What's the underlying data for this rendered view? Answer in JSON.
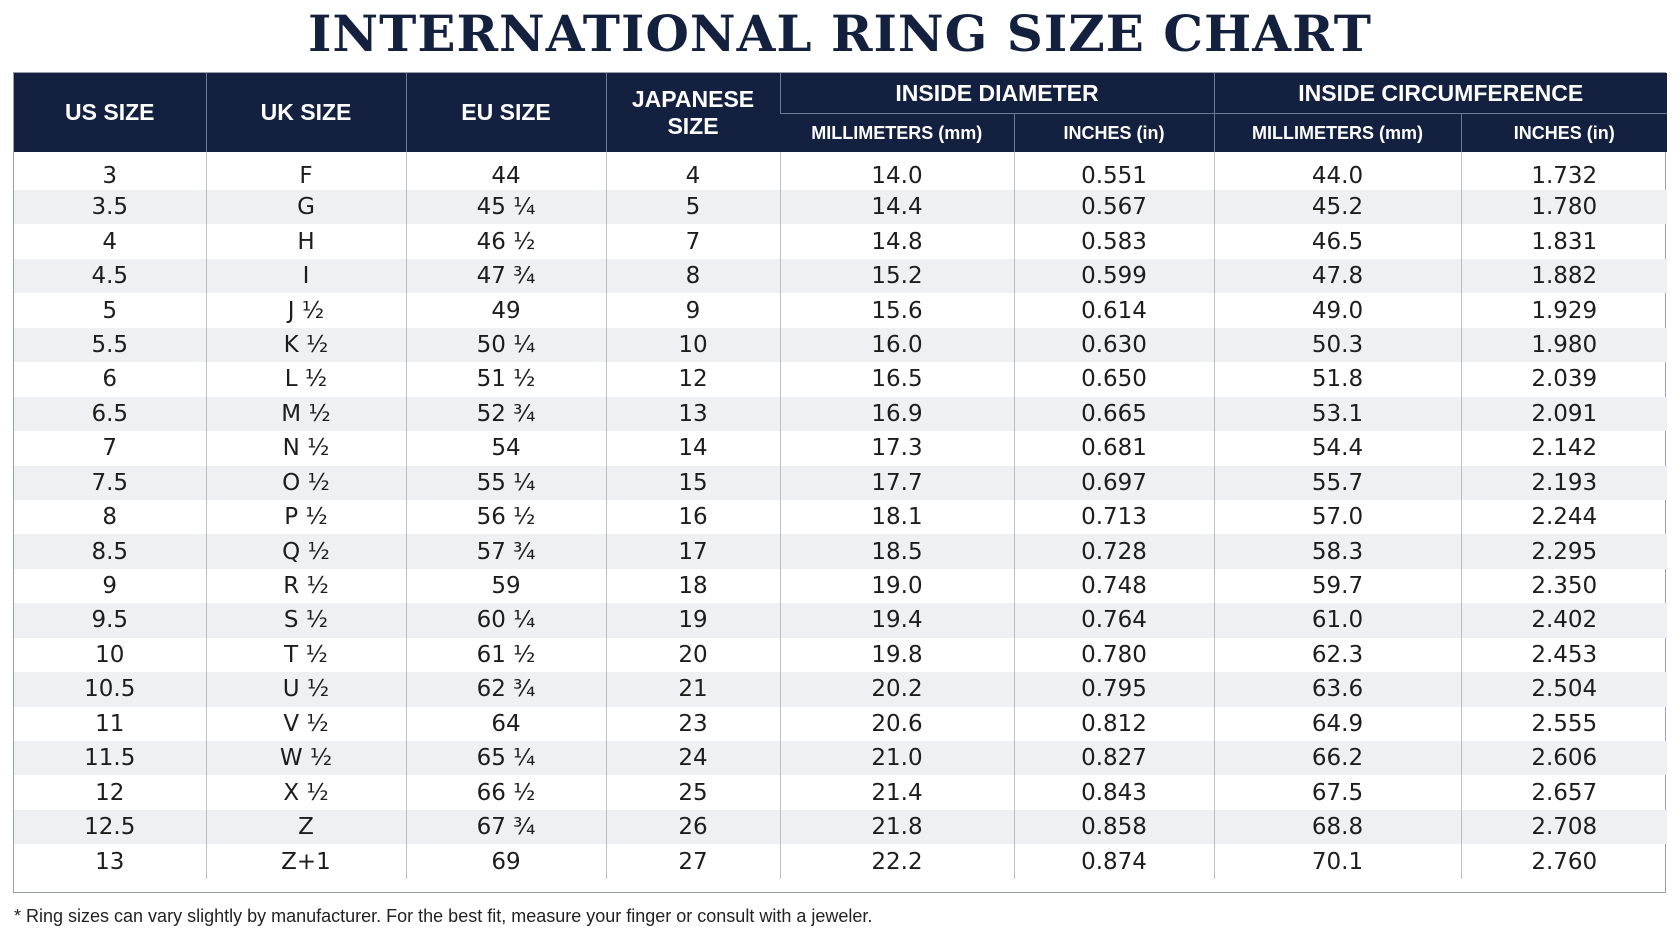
{
  "title": "INTERNATIONAL RING SIZE CHART",
  "headers": {
    "us_size": "US SIZE",
    "uk_size": "UK SIZE",
    "eu_size": "EU SIZE",
    "japanese_size_line1": "JAPANESE",
    "japanese_size_line2": "SIZE",
    "inside_diameter": "INSIDE DIAMETER",
    "inside_circumference": "INSIDE CIRCUMFERENCE",
    "diameter_mm": "MILLIMETERS (mm)",
    "diameter_in": "INCHES (in)",
    "circumference_mm": "MILLIMETERS (mm)",
    "circumference_in": "INCHES (in)"
  },
  "rows": [
    [
      "3",
      "F",
      "44",
      "4",
      "14.0",
      "0.551",
      "44.0",
      "1.732"
    ],
    [
      "3.5",
      "G",
      "45 ¼",
      "5",
      "14.4",
      "0.567",
      "45.2",
      "1.780"
    ],
    [
      "4",
      "H",
      "46 ½",
      "7",
      "14.8",
      "0.583",
      "46.5",
      "1.831"
    ],
    [
      "4.5",
      "I",
      "47 ¾",
      "8",
      "15.2",
      "0.599",
      "47.8",
      "1.882"
    ],
    [
      "5",
      "J ½",
      "49",
      "9",
      "15.6",
      "0.614",
      "49.0",
      "1.929"
    ],
    [
      "5.5",
      "K ½",
      "50 ¼",
      "10",
      "16.0",
      "0.630",
      "50.3",
      "1.980"
    ],
    [
      "6",
      "L ½",
      "51 ½",
      "12",
      "16.5",
      "0.650",
      "51.8",
      "2.039"
    ],
    [
      "6.5",
      "M ½",
      "52 ¾",
      "13",
      "16.9",
      "0.665",
      "53.1",
      "2.091"
    ],
    [
      "7",
      "N ½",
      "54",
      "14",
      "17.3",
      "0.681",
      "54.4",
      "2.142"
    ],
    [
      "7.5",
      "O ½",
      "55 ¼",
      "15",
      "17.7",
      "0.697",
      "55.7",
      "2.193"
    ],
    [
      "8",
      "P ½",
      "56 ½",
      "16",
      "18.1",
      "0.713",
      "57.0",
      "2.244"
    ],
    [
      "8.5",
      "Q ½",
      "57 ¾",
      "17",
      "18.5",
      "0.728",
      "58.3",
      "2.295"
    ],
    [
      "9",
      "R ½",
      "59",
      "18",
      "19.0",
      "0.748",
      "59.7",
      "2.350"
    ],
    [
      "9.5",
      "S ½",
      "60 ¼",
      "19",
      "19.4",
      "0.764",
      "61.0",
      "2.402"
    ],
    [
      "10",
      "T ½",
      "61 ½",
      "20",
      "19.8",
      "0.780",
      "62.3",
      "2.453"
    ],
    [
      "10.5",
      "U ½",
      "62 ¾",
      "21",
      "20.2",
      "0.795",
      "63.6",
      "2.504"
    ],
    [
      "11",
      "V ½",
      "64",
      "23",
      "20.6",
      "0.812",
      "64.9",
      "2.555"
    ],
    [
      "11.5",
      "W ½",
      "65 ¼",
      "24",
      "21.0",
      "0.827",
      "66.2",
      "2.606"
    ],
    [
      "12",
      "X ½",
      "66 ½",
      "25",
      "21.4",
      "0.843",
      "67.5",
      "2.657"
    ],
    [
      "12.5",
      "Z",
      "67 ¾",
      "26",
      "21.8",
      "0.858",
      "68.8",
      "2.708"
    ],
    [
      "13",
      "Z+1",
      "69",
      "27",
      "22.2",
      "0.874",
      "70.1",
      "2.760"
    ]
  ],
  "footnote": "* Ring sizes can vary slightly by manufacturer. For the best fit, measure your finger or consult with a jeweler.",
  "colors": {
    "header_bg": "#13203f",
    "header_text": "#ffffff",
    "title": "#13213f",
    "stripe": "#eef0f4"
  }
}
